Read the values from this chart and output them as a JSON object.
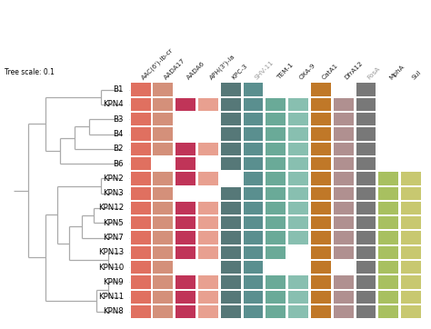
{
  "rows": [
    "B1",
    "KPN4",
    "B3",
    "B4",
    "B2",
    "B6",
    "KPN2",
    "KPN3",
    "KPN12",
    "KPN5",
    "KPN7",
    "KPN13",
    "KPN10",
    "KPN9",
    "KPN11",
    "KPN8"
  ],
  "cols": [
    "AAC(6')-Ib-cr",
    "AADA17",
    "AADA6",
    "APH(3')-Ia",
    "KPC-3",
    "SHV-11",
    "TEM-1",
    "OXA-9",
    "CatA1",
    "DfrA12",
    "FosA",
    "MphA",
    "Sul"
  ],
  "col_colors": {
    "AAC(6')-Ib-cr": "#e07060",
    "AADA17": "#d4907a",
    "AADA6": "#c03458",
    "APH(3')-Ia": "#e8a090",
    "KPC-3": "#567878",
    "SHV-11": "#5a8f8f",
    "TEM-1": "#6aaa98",
    "OXA-9": "#88bfb0",
    "CatA1": "#c07828",
    "DfrA12": "#b09090",
    "FosA": "#787878",
    "MphA": "#a8c060",
    "Sul": "#c8c870"
  },
  "heatmap": {
    "B1": [
      1,
      1,
      0,
      0,
      1,
      1,
      0,
      0,
      1,
      0,
      1,
      0,
      0
    ],
    "KPN4": [
      1,
      1,
      1,
      1,
      1,
      1,
      1,
      1,
      1,
      1,
      1,
      0,
      0
    ],
    "B3": [
      1,
      1,
      0,
      0,
      1,
      1,
      1,
      1,
      1,
      1,
      1,
      0,
      0
    ],
    "B4": [
      1,
      1,
      0,
      0,
      1,
      1,
      1,
      1,
      1,
      1,
      1,
      0,
      0
    ],
    "B2": [
      1,
      1,
      1,
      1,
      1,
      1,
      1,
      1,
      1,
      1,
      1,
      0,
      0
    ],
    "B6": [
      1,
      0,
      1,
      0,
      1,
      1,
      1,
      1,
      1,
      1,
      1,
      0,
      0
    ],
    "KPN2": [
      1,
      1,
      1,
      1,
      0,
      1,
      1,
      1,
      1,
      1,
      1,
      1,
      1
    ],
    "KPN3": [
      1,
      1,
      0,
      0,
      1,
      1,
      1,
      1,
      1,
      1,
      1,
      1,
      1
    ],
    "KPN12": [
      1,
      1,
      1,
      1,
      1,
      1,
      1,
      1,
      1,
      1,
      1,
      1,
      1
    ],
    "KPN5": [
      1,
      1,
      1,
      1,
      1,
      1,
      1,
      1,
      1,
      1,
      1,
      1,
      1
    ],
    "KPN7": [
      1,
      1,
      1,
      1,
      1,
      1,
      1,
      1,
      1,
      1,
      1,
      1,
      1
    ],
    "KPN13": [
      1,
      1,
      1,
      1,
      1,
      1,
      1,
      0,
      1,
      1,
      1,
      1,
      1
    ],
    "KPN10": [
      1,
      1,
      0,
      0,
      1,
      1,
      0,
      0,
      1,
      0,
      1,
      1,
      1
    ],
    "KPN9": [
      1,
      1,
      1,
      1,
      1,
      1,
      1,
      1,
      1,
      1,
      1,
      1,
      1
    ],
    "KPN11": [
      1,
      1,
      1,
      1,
      1,
      1,
      1,
      1,
      1,
      1,
      1,
      1,
      1
    ],
    "KPN8": [
      1,
      1,
      1,
      1,
      1,
      1,
      1,
      1,
      1,
      1,
      1,
      1,
      1
    ]
  },
  "tree_color": "#aaaaaa",
  "dotted_color": "#bbbbbb",
  "bg_color": "#ffffff",
  "tree_scale_label": "Tree scale: 0.1",
  "col_label_grayed": [
    "SHV-11",
    "FosA"
  ]
}
